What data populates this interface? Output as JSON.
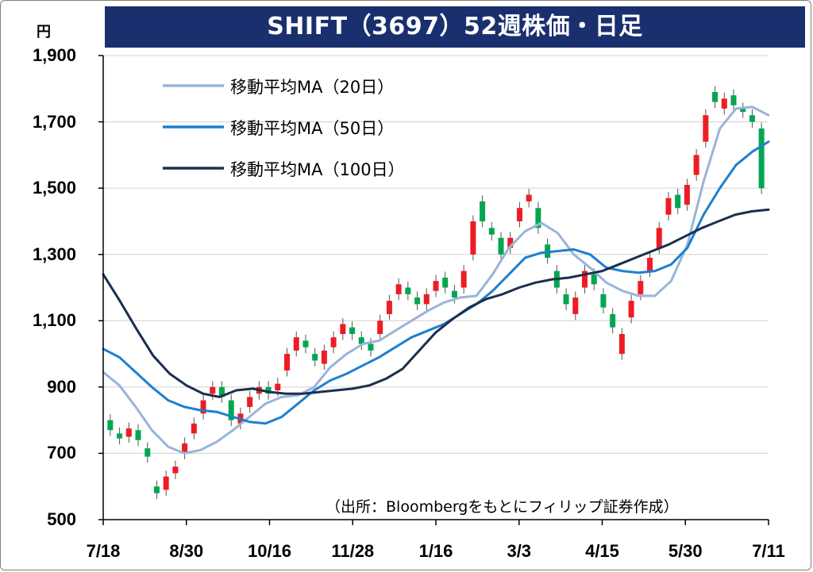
{
  "title": "SHIFT（3697）52週株価・日足",
  "y_unit": "円",
  "source": "（出所：Bloombergをもとにフィリップ証券作成）",
  "colors": {
    "title_bg": "#1a2f6e",
    "up": "#ee1c25",
    "down": "#00a651",
    "ma20": "#9ab4d8",
    "ma50": "#1f7fcf",
    "ma100": "#1b2f4e",
    "grid": "#d0d0d0"
  },
  "chart_data": {
    "type": "candlestick",
    "title": "SHIFT（3697）52週株価・日足",
    "ylabel": "円",
    "ylim": [
      500,
      1900
    ],
    "yticks": [
      "1,900",
      "1,700",
      "1,500",
      "1,300",
      "1,100",
      "900",
      "700",
      "500"
    ],
    "ytick_values": [
      1900,
      1700,
      1500,
      1300,
      1100,
      900,
      700,
      500
    ],
    "xticks": [
      "7/18",
      "8/30",
      "10/16",
      "11/28",
      "1/16",
      "3/3",
      "4/15",
      "5/30",
      "7/11"
    ],
    "grid": true,
    "legend_position": "top-left",
    "series": [
      {
        "name": "移動平均MA（20日）",
        "color": "#9ab4d8",
        "values": [
          945,
          905,
          840,
          770,
          720,
          700,
          710,
          735,
          770,
          810,
          850,
          870,
          875,
          900,
          960,
          1000,
          1030,
          1040,
          1070,
          1100,
          1130,
          1155,
          1170,
          1175,
          1240,
          1320,
          1370,
          1395,
          1365,
          1300,
          1260,
          1215,
          1190,
          1175,
          1175,
          1220,
          1330,
          1520,
          1680,
          1740,
          1745,
          1720
        ]
      },
      {
        "name": "移動平均MA（50日）",
        "color": "#1f7fcf",
        "values": [
          1015,
          990,
          945,
          900,
          860,
          840,
          830,
          825,
          810,
          795,
          790,
          810,
          850,
          890,
          920,
          940,
          965,
          990,
          1020,
          1050,
          1070,
          1090,
          1120,
          1150,
          1190,
          1240,
          1290,
          1305,
          1310,
          1315,
          1300,
          1260,
          1250,
          1245,
          1250,
          1270,
          1320,
          1420,
          1500,
          1570,
          1610,
          1640
        ]
      },
      {
        "name": "移動平均MA（100日）",
        "color": "#1b2f4e",
        "values": [
          1240,
          1160,
          1075,
          995,
          940,
          905,
          880,
          870,
          890,
          895,
          885,
          880,
          880,
          885,
          890,
          895,
          905,
          925,
          955,
          1010,
          1065,
          1105,
          1140,
          1165,
          1180,
          1200,
          1215,
          1225,
          1230,
          1240,
          1250,
          1270,
          1290,
          1310,
          1330,
          1355,
          1380,
          1400,
          1420,
          1430,
          1435
        ]
      }
    ],
    "candles_approx": [
      [
        800,
        770
      ],
      [
        760,
        745
      ],
      [
        750,
        775
      ],
      [
        770,
        740
      ],
      [
        715,
        690
      ],
      [
        600,
        580
      ],
      [
        590,
        630
      ],
      [
        640,
        660
      ],
      [
        700,
        730
      ],
      [
        760,
        790
      ],
      [
        820,
        860
      ],
      [
        880,
        900
      ],
      [
        900,
        870
      ],
      [
        860,
        800
      ],
      [
        790,
        820
      ],
      [
        840,
        870
      ],
      [
        880,
        900
      ],
      [
        900,
        880
      ],
      [
        890,
        910
      ],
      [
        950,
        1000
      ],
      [
        1010,
        1050
      ],
      [
        1040,
        1020
      ],
      [
        1000,
        980
      ],
      [
        970,
        1010
      ],
      [
        1020,
        1050
      ],
      [
        1060,
        1090
      ],
      [
        1080,
        1060
      ],
      [
        1050,
        1030
      ],
      [
        1030,
        1010
      ],
      [
        1060,
        1100
      ],
      [
        1120,
        1160
      ],
      [
        1180,
        1210
      ],
      [
        1200,
        1180
      ],
      [
        1170,
        1150
      ],
      [
        1150,
        1180
      ],
      [
        1190,
        1220
      ],
      [
        1230,
        1200
      ],
      [
        1190,
        1170
      ],
      [
        1200,
        1250
      ],
      [
        1300,
        1400
      ],
      [
        1460,
        1400
      ],
      [
        1380,
        1360
      ],
      [
        1350,
        1300
      ],
      [
        1320,
        1350
      ],
      [
        1400,
        1440
      ],
      [
        1460,
        1480
      ],
      [
        1440,
        1380
      ],
      [
        1330,
        1290
      ],
      [
        1250,
        1200
      ],
      [
        1180,
        1150
      ],
      [
        1120,
        1170
      ],
      [
        1200,
        1250
      ],
      [
        1240,
        1210
      ],
      [
        1180,
        1140
      ],
      [
        1120,
        1080
      ],
      [
        1000,
        1060
      ],
      [
        1110,
        1160
      ],
      [
        1180,
        1220
      ],
      [
        1250,
        1290
      ],
      [
        1320,
        1380
      ],
      [
        1420,
        1470
      ],
      [
        1480,
        1440
      ],
      [
        1450,
        1510
      ],
      [
        1540,
        1600
      ],
      [
        1640,
        1720
      ],
      [
        1790,
        1760
      ],
      [
        1740,
        1770
      ],
      [
        1780,
        1750
      ],
      [
        1740,
        1730
      ],
      [
        1720,
        1700
      ],
      [
        1680,
        1500
      ]
    ]
  }
}
